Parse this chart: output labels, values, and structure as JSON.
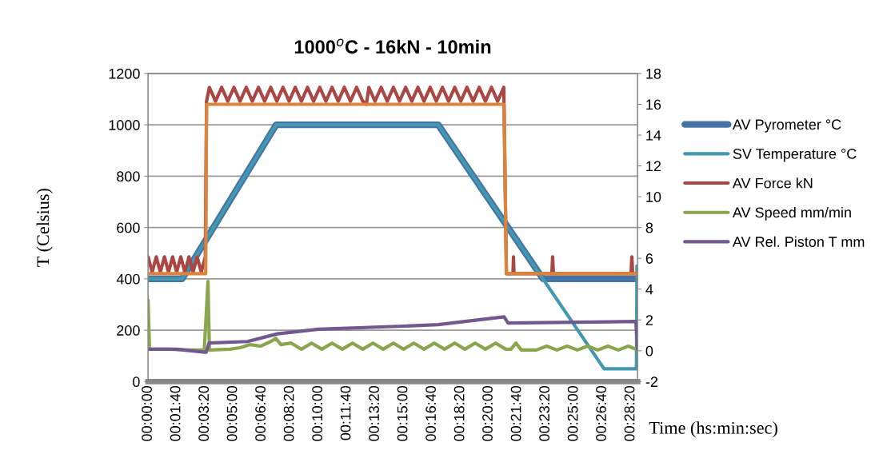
{
  "chart_data": {
    "type": "line",
    "title": "1000$^{o}$C - 16kN - 10min",
    "ylabel": "T (Celsius)",
    "xlabel": "Time (hs:min:sec)",
    "xlim": [
      0,
      0.4789
    ],
    "xticks": [
      {
        "value": 0,
        "label": "00:00:00"
      },
      {
        "value": 0.0278,
        "label": "00:01:40"
      },
      {
        "value": 0.0556,
        "label": "00:03:20"
      },
      {
        "value": 0.0833,
        "label": "00:05:00"
      },
      {
        "value": 0.1111,
        "label": "00:06:40"
      },
      {
        "value": 0.1389,
        "label": "00:08:20"
      },
      {
        "value": 0.1667,
        "label": "00:10:00"
      },
      {
        "value": 0.1944,
        "label": "00:11:40"
      },
      {
        "value": 0.2222,
        "label": "00:13:20"
      },
      {
        "value": 0.25,
        "label": "00:15:00"
      },
      {
        "value": 0.2778,
        "label": "00:16:40"
      },
      {
        "value": 0.3056,
        "label": "00:18:20"
      },
      {
        "value": 0.3333,
        "label": "00:20:00"
      },
      {
        "value": 0.3611,
        "label": "00:21:40"
      },
      {
        "value": 0.3889,
        "label": "00:23:20"
      },
      {
        "value": 0.4167,
        "label": "00:25:00"
      },
      {
        "value": 0.4444,
        "label": "00:26:40"
      },
      {
        "value": 0.4722,
        "label": "00:28:20"
      }
    ],
    "ylim": [
      0,
      1200
    ],
    "yticks": [
      0,
      200,
      400,
      600,
      800,
      1000,
      1200
    ],
    "y2lim": [
      -2,
      18
    ],
    "y2ticks": [
      -2,
      0,
      2,
      4,
      6,
      8,
      10,
      12,
      14,
      16,
      18
    ],
    "grid": "y",
    "legend": "right",
    "series": [
      {
        "name": "AV Pyrometer °C",
        "color": "#4572a7",
        "x": [
          0,
          0.0333,
          0.1253,
          0.2839,
          0.3864,
          0.4778
        ],
        "values": [
          400,
          400,
          1000,
          1000,
          400,
          400
        ]
      },
      {
        "name": "SV Temperature °C",
        "color": "#4198af",
        "x": [
          0,
          0.0333,
          0.1253,
          0.2839,
          0.4461,
          0.4778,
          0.4783
        ],
        "values": [
          400,
          400,
          1000,
          1000,
          50,
          50,
          450
        ]
      },
      {
        "name": "AV Force kN",
        "color": "#aa4643",
        "axis": "y2",
        "x": [
          0,
          0.004,
          0.008,
          0.012,
          0.016,
          0.02,
          0.024,
          0.028,
          0.032,
          0.036,
          0.04,
          0.044,
          0.048,
          0.052,
          0.056,
          0.0572,
          0.06,
          0.066,
          0.072,
          0.078,
          0.084,
          0.09,
          0.096,
          0.102,
          0.108,
          0.114,
          0.12,
          0.126,
          0.132,
          0.138,
          0.144,
          0.15,
          0.156,
          0.162,
          0.168,
          0.174,
          0.18,
          0.186,
          0.192,
          0.198,
          0.204,
          0.21,
          0.2136,
          0.216,
          0.222,
          0.228,
          0.234,
          0.24,
          0.246,
          0.252,
          0.258,
          0.264,
          0.27,
          0.276,
          0.282,
          0.288,
          0.294,
          0.3,
          0.306,
          0.312,
          0.318,
          0.324,
          0.33,
          0.336,
          0.342,
          0.348,
          0.3506,
          0.357,
          0.3575,
          0.358,
          0.395,
          0.3958,
          0.3966,
          0.4725,
          0.4733,
          0.4741,
          0.4789
        ],
        "values": [
          6.1,
          5.1,
          6.1,
          5.1,
          6.1,
          5.1,
          6.1,
          5.1,
          6.1,
          5.1,
          6.1,
          5.1,
          6.1,
          5.1,
          6.1,
          16.2,
          17.1,
          16.2,
          17.1,
          16.2,
          17.1,
          16.2,
          17.1,
          16.2,
          17.1,
          16.2,
          17.1,
          16.2,
          17.1,
          16.2,
          17.1,
          16.2,
          17.1,
          16.2,
          17.1,
          16.2,
          17.1,
          16.2,
          17.1,
          16.2,
          17.1,
          16.2,
          16.0,
          17.1,
          16.2,
          17.1,
          16.2,
          17.1,
          16.2,
          17.1,
          16.2,
          17.1,
          16.2,
          17.1,
          16.2,
          17.1,
          16.2,
          17.1,
          16.2,
          17.1,
          16.2,
          17.1,
          16.2,
          17.1,
          16.2,
          17.1,
          5.0,
          5.0,
          6.1,
          5.0,
          5.0,
          6.1,
          5.0,
          5.0,
          6.1,
          5.0,
          5.0
        ]
      },
      {
        "name": "AV Speed mm/min",
        "color": "#89a54e",
        "axis": "y2",
        "x": [
          0,
          0.0014,
          0.02,
          0.04,
          0.055,
          0.0586,
          0.06,
          0.08,
          0.09,
          0.1,
          0.11,
          0.12,
          0.125,
          0.13,
          0.14,
          0.15,
          0.16,
          0.17,
          0.18,
          0.19,
          0.2,
          0.21,
          0.22,
          0.23,
          0.24,
          0.25,
          0.26,
          0.27,
          0.28,
          0.29,
          0.3,
          0.31,
          0.32,
          0.33,
          0.34,
          0.35,
          0.355,
          0.36,
          0.365,
          0.38,
          0.39,
          0.4,
          0.41,
          0.42,
          0.43,
          0.44,
          0.45,
          0.46,
          0.47,
          0.4789
        ],
        "values": [
          3.3,
          0.1,
          0.1,
          0.05,
          0.05,
          4.5,
          0.05,
          0.1,
          0.2,
          0.4,
          0.3,
          0.6,
          0.8,
          0.4,
          0.5,
          0.1,
          0.5,
          0.1,
          0.5,
          0.1,
          0.5,
          0.1,
          0.5,
          0.1,
          0.5,
          0.1,
          0.5,
          0.1,
          0.5,
          0.1,
          0.5,
          0.1,
          0.5,
          0.1,
          0.5,
          0.1,
          0.1,
          0.5,
          0.05,
          0.05,
          0.3,
          0.05,
          0.3,
          0.05,
          0.3,
          0.05,
          0.3,
          0.05,
          0.3,
          0.05
        ]
      },
      {
        "name": "AV Rel. Piston T mm",
        "color": "#71588f",
        "axis": "y2",
        "x": [
          0,
          0.0278,
          0.0569,
          0.0597,
          0.0972,
          0.1267,
          0.1667,
          0.25,
          0.2839,
          0.3483,
          0.3522,
          0.4772,
          0.4789
        ],
        "values": [
          0.1,
          0.1,
          -0.1,
          0.5,
          0.6,
          1.1,
          1.4,
          1.6,
          1.7,
          2.2,
          1.8,
          1.9,
          0.1
        ]
      },
      {
        "color": "#db843d",
        "axis": "y2",
        "x": [
          0,
          0.0564,
          0.0572,
          0.3483,
          0.3506,
          0.4789
        ],
        "values": [
          5,
          5,
          16,
          16,
          5,
          5
        ]
      }
    ]
  }
}
